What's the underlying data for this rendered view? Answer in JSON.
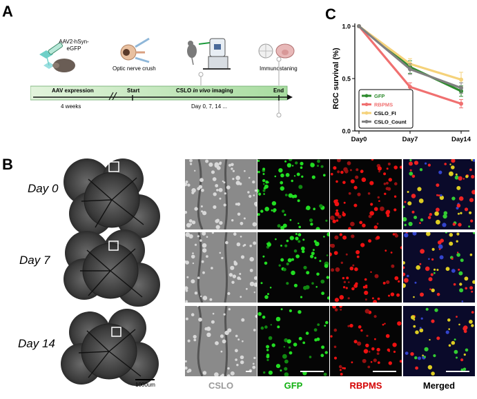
{
  "panels": {
    "a": "A",
    "b": "B",
    "c": "C"
  },
  "panel_a": {
    "vector": "AAV2-hSyn-eGFP",
    "optic_nerve_crush": "Optic nerve crush",
    "immunostaining": "Immunostaning",
    "aav_expression": "AAV expression",
    "start": "Start",
    "cslo_prefix": "CSLO",
    "cslo_italic": "in vivo",
    "cslo_suffix": "imaging",
    "end": "End",
    "weeks": "4 weeks",
    "days": "Day 0, 7, 14 ..."
  },
  "panel_b": {
    "rows": [
      "Day 0",
      "Day 7",
      "Day 14"
    ],
    "columns": [
      "CSLO",
      "GFP",
      "RBPMS",
      "Merged"
    ],
    "column_colors": [
      "#9a9a9a",
      "#10b010",
      "#d40000",
      "#000000"
    ],
    "scale": "1000um"
  },
  "chart_data": {
    "type": "line",
    "title": "",
    "xlabel": "",
    "ylabel": "RGC survival (%)",
    "categories": [
      "Day0",
      "Day7",
      "Day14"
    ],
    "ylim": [
      0,
      1.0
    ],
    "yticks": [
      "0.0",
      "0.5",
      "1.0"
    ],
    "legend_position": "bottom-left",
    "series": [
      {
        "name": "GFP",
        "values": [
          1.0,
          0.61,
          0.38
        ],
        "errors": [
          0,
          0.06,
          0.05
        ],
        "color": "#2e8b2e"
      },
      {
        "name": "RBPMS",
        "values": [
          1.0,
          0.42,
          0.26
        ],
        "errors": [
          0,
          0.04,
          0.04
        ],
        "color": "#f07070"
      },
      {
        "name": "CSLO_FI",
        "values": [
          1.0,
          0.64,
          0.49
        ],
        "errors": [
          0,
          0.05,
          0.07
        ],
        "color": "#f5d27a"
      },
      {
        "name": "CSLO_Count",
        "values": [
          1.0,
          0.59,
          0.41
        ],
        "errors": [
          0,
          0.05,
          0.05
        ],
        "color": "#808080"
      }
    ]
  }
}
